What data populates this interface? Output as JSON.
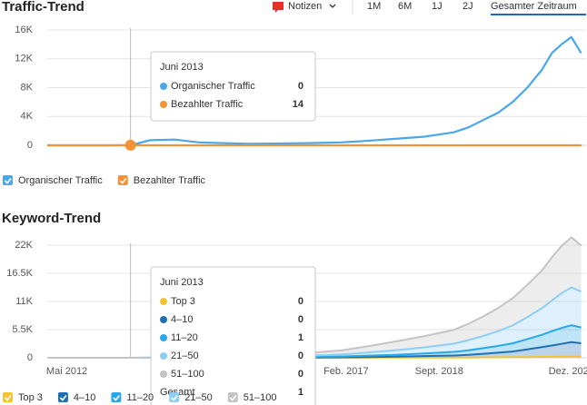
{
  "controls": {
    "notes": "Notizen",
    "ranges": [
      "1M",
      "6M",
      "1J",
      "2J",
      "Gesamter Zeitraum"
    ]
  },
  "chart_data": [
    {
      "type": "line",
      "title": "Traffic-Trend",
      "x": [
        "2012-01",
        "2012-06",
        "2012-12",
        "2013-06",
        "2013-10",
        "2014-03",
        "2014-08",
        "2015-01",
        "2015-06",
        "2016-01",
        "2016-06",
        "2017-01",
        "2017-06",
        "2017-12",
        "2018-06",
        "2018-12",
        "2019-03",
        "2019-06",
        "2019-09",
        "2019-12",
        "2020-03",
        "2020-06",
        "2020-08",
        "2020-10",
        "2020-12",
        "2021-02"
      ],
      "series": [
        {
          "name": "Organischer Traffic",
          "color": "#4aa8e8",
          "values": [
            0,
            0,
            0,
            0,
            700,
            800,
            400,
            300,
            200,
            250,
            300,
            400,
            600,
            900,
            1200,
            1800,
            2500,
            3500,
            4500,
            6000,
            8000,
            10500,
            12800,
            14000,
            15000,
            12800
          ]
        },
        {
          "name": "Bezahlter Traffic",
          "color": "#f19336",
          "values": [
            0,
            0,
            0,
            14,
            0,
            0,
            0,
            0,
            0,
            0,
            0,
            0,
            0,
            0,
            0,
            0,
            0,
            0,
            0,
            0,
            0,
            0,
            0,
            0,
            0,
            0
          ]
        }
      ],
      "xlim": [
        "2012-01",
        "2021-03"
      ],
      "ylim": [
        0,
        16000
      ],
      "yticks": [
        0,
        {
          "value": 4000,
          "label": "4K"
        },
        {
          "value": 8000,
          "label": "8K"
        },
        {
          "value": 12000,
          "label": "12K"
        },
        {
          "value": 16000,
          "label": "16K"
        }
      ],
      "grid": true,
      "tooltip": {
        "label": "Juni 2013",
        "x": "2013-06"
      }
    },
    {
      "type": "area",
      "title": "Keyword-Trend",
      "x": [
        "2012-01",
        "2012-06",
        "2012-12",
        "2013-06",
        "2013-10",
        "2014-03",
        "2014-08",
        "2015-01",
        "2015-06",
        "2016-01",
        "2016-06",
        "2017-01",
        "2017-06",
        "2017-12",
        "2018-06",
        "2018-12",
        "2019-03",
        "2019-06",
        "2019-09",
        "2019-12",
        "2020-03",
        "2020-06",
        "2020-08",
        "2020-10",
        "2020-12",
        "2021-02"
      ],
      "series": [
        {
          "name": "Top 3",
          "color": "#f5c330",
          "values": [
            0,
            0,
            0,
            0,
            0,
            0,
            0,
            0,
            0,
            0,
            0,
            10,
            20,
            30,
            40,
            50,
            60,
            80,
            100,
            120,
            150,
            180,
            200,
            220,
            250,
            230
          ]
        },
        {
          "name": "4–10",
          "color": "#1f6fb5",
          "values": [
            0,
            0,
            0,
            0,
            0,
            10,
            10,
            20,
            20,
            30,
            50,
            80,
            120,
            200,
            300,
            400,
            500,
            700,
            900,
            1100,
            1500,
            1900,
            2200,
            2500,
            2800,
            2600
          ]
        },
        {
          "name": "11–20",
          "color": "#29a7e8",
          "values": [
            0,
            0,
            0,
            1,
            5,
            20,
            20,
            30,
            40,
            60,
            100,
            150,
            250,
            350,
            500,
            700,
            900,
            1100,
            1300,
            1600,
            2000,
            2400,
            2800,
            3100,
            3300,
            3100
          ]
        },
        {
          "name": "21–50",
          "color": "#8fcdf4",
          "values": [
            0,
            0,
            0,
            0,
            20,
            60,
            60,
            80,
            100,
            150,
            250,
            400,
            600,
            900,
            1200,
            1600,
            2000,
            2400,
            2900,
            3500,
            4300,
            5200,
            6000,
            6800,
            7400,
            7000
          ]
        },
        {
          "name": "51–100",
          "color": "#c4c4c4",
          "values": [
            0,
            0,
            0,
            0,
            50,
            100,
            120,
            150,
            200,
            300,
            500,
            800,
            1200,
            1700,
            2200,
            2700,
            3200,
            3800,
            4500,
            5300,
            6300,
            7400,
            8400,
            9200,
            9800,
            9000
          ]
        }
      ],
      "xlim": [
        "2012-01",
        "2021-03"
      ],
      "xticks": [
        {
          "value": "2012-05",
          "label": "Mai 2012"
        },
        {
          "value": "2017-02",
          "label": "Feb. 2017"
        },
        {
          "value": "2018-09",
          "label": "Sept. 2018"
        },
        {
          "value": "2020-12",
          "label": "Dez. 2020"
        }
      ],
      "ylim": [
        0,
        22000
      ],
      "yticks": [
        0,
        {
          "value": 5500,
          "label": "5.5K"
        },
        {
          "value": 11000,
          "label": "11K"
        },
        {
          "value": 16500,
          "label": "16.5K"
        },
        {
          "value": 22000,
          "label": "22K"
        }
      ],
      "grid": true,
      "tooltip": {
        "label": "Juni 2013",
        "x": "2013-06",
        "total_label": "Gesamt",
        "total": 1
      }
    }
  ]
}
